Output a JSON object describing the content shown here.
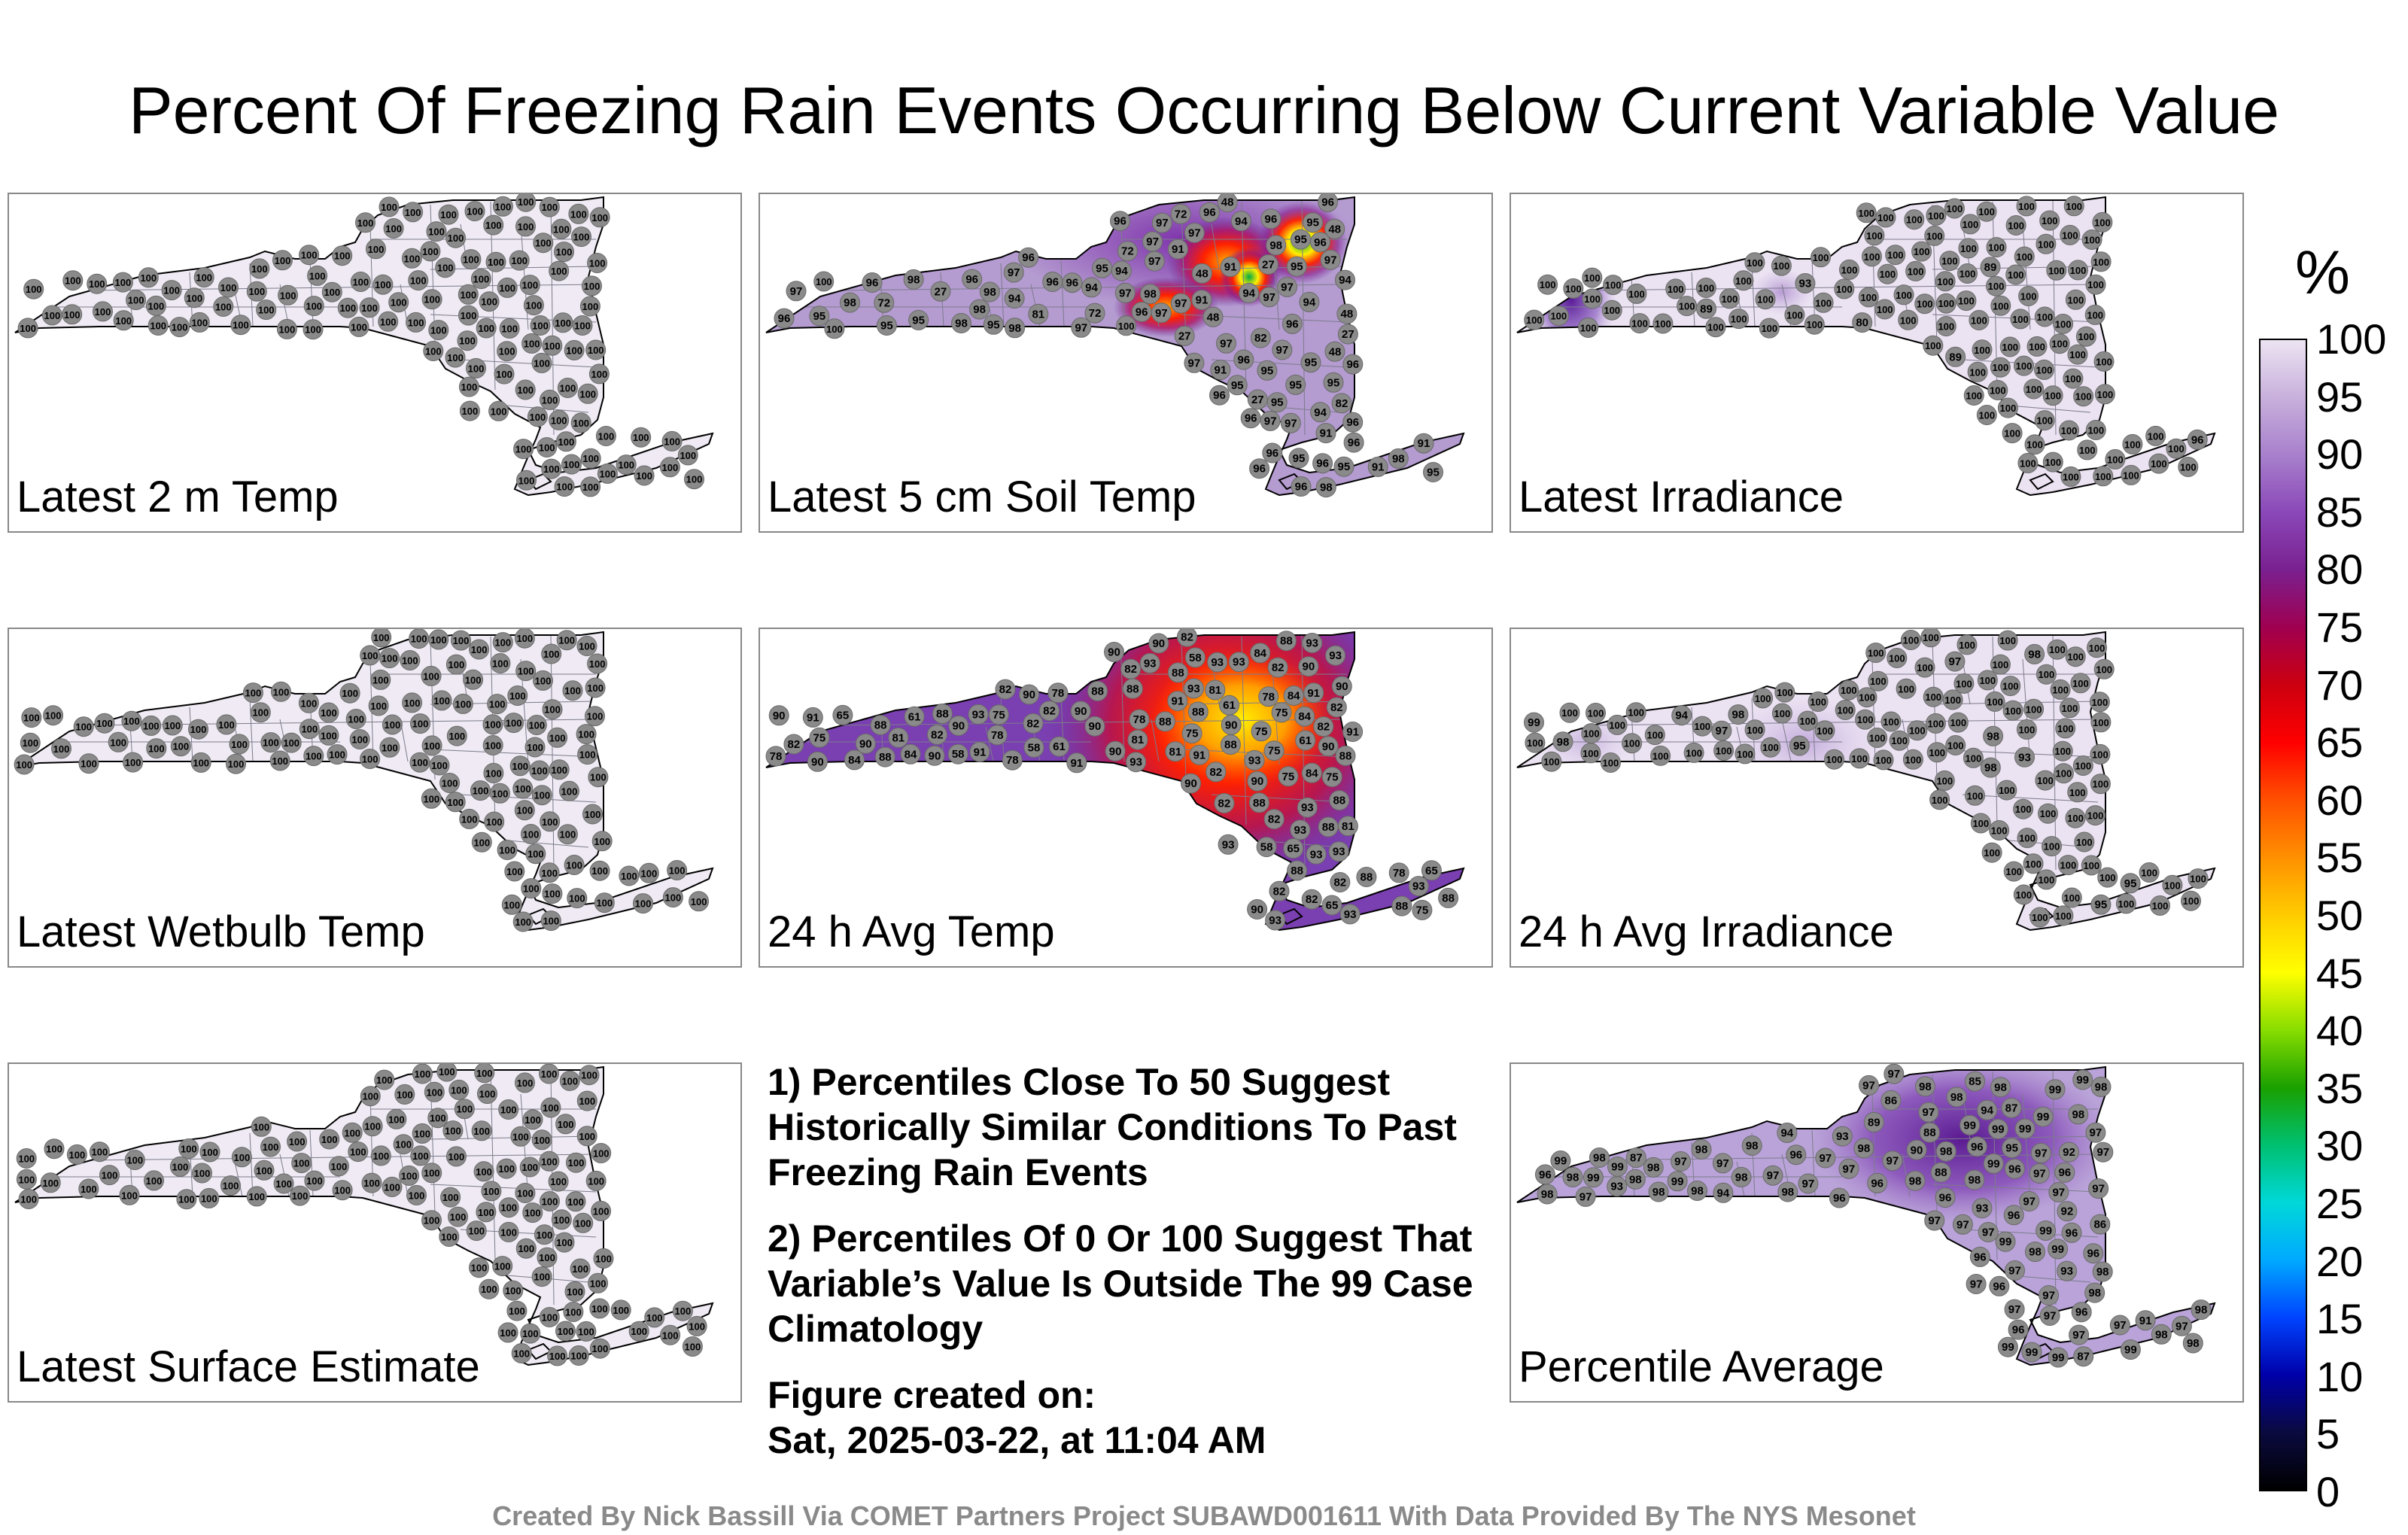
{
  "title": "Percent Of Freezing Rain Events Occurring Below Current Variable Value",
  "panels": [
    {
      "id": "p1",
      "label": "Latest 2 m Temp",
      "mode": "flat",
      "labels": [
        100,
        100,
        100,
        100,
        100,
        100,
        100,
        100,
        100,
        100,
        100,
        100,
        100,
        100,
        100,
        100,
        100,
        100,
        100,
        100,
        100,
        100,
        100,
        100,
        100,
        100,
        100,
        100,
        100,
        100,
        100,
        100,
        100,
        100,
        100,
        100,
        100,
        100,
        100,
        100,
        100,
        100,
        100,
        100,
        100,
        100,
        100,
        100,
        100,
        100,
        100,
        100,
        100,
        100,
        100,
        100,
        100,
        100,
        100,
        100,
        100,
        100,
        100,
        100,
        100,
        100,
        100,
        100,
        100,
        100,
        100,
        100,
        100,
        100,
        100,
        100,
        100,
        100,
        100,
        100,
        100,
        100,
        100,
        100,
        100,
        100,
        100,
        100,
        100,
        100,
        100,
        100,
        100,
        100,
        100,
        100,
        100,
        100,
        100,
        100,
        100,
        100,
        100,
        100,
        100,
        100,
        100,
        100,
        100,
        100,
        100,
        100,
        100,
        100,
        100,
        100,
        100,
        100,
        100,
        100,
        100,
        100,
        100,
        100,
        100,
        100
      ]
    },
    {
      "id": "p2",
      "label": "Latest 5 cm Soil Temp",
      "mode": "soil",
      "labels": [
        96,
        95,
        95,
        94,
        94,
        91,
        100,
        72,
        72,
        94,
        91,
        72,
        94,
        27,
        48,
        95,
        95,
        94,
        48,
        48,
        91,
        48,
        48,
        96,
        81,
        94,
        48,
        27,
        27,
        82,
        96,
        95,
        95,
        72,
        96,
        27,
        94,
        96,
        98,
        97,
        97,
        96,
        97,
        97,
        98,
        95,
        97,
        95,
        97,
        96,
        96,
        97,
        91,
        96,
        96,
        96,
        97,
        97,
        95,
        95,
        95,
        91,
        97,
        98,
        95,
        27,
        95,
        97,
        96,
        98,
        97,
        82,
        97,
        94,
        97,
        98,
        91,
        95,
        96,
        95,
        91,
        96,
        96,
        97,
        97,
        96,
        96,
        96,
        95,
        96,
        98,
        97,
        96,
        100,
        98,
        98,
        98,
        98,
        100,
        96,
        97,
        96,
        95,
        96
      ]
    },
    {
      "id": "p3",
      "label": "Latest Irradiance",
      "mode": "irr",
      "labels": [
        100,
        100,
        100,
        100,
        100,
        100,
        100,
        100,
        100,
        100,
        100,
        100,
        100,
        100,
        100,
        100,
        100,
        100,
        100,
        100,
        100,
        100,
        100,
        100,
        100,
        100,
        100,
        100,
        100,
        100,
        100,
        100,
        100,
        100,
        100,
        100,
        100,
        100,
        100,
        100,
        89,
        93,
        100,
        96,
        100,
        89,
        80,
        89,
        100,
        100,
        100,
        100,
        100,
        100,
        100,
        100,
        100,
        100,
        100,
        100,
        100,
        100,
        100,
        100,
        100,
        100,
        100,
        100,
        100,
        100,
        100,
        100,
        100,
        100,
        100,
        100,
        100,
        100,
        100,
        100,
        100,
        100,
        100,
        100,
        100,
        100,
        100,
        100,
        100,
        100,
        100,
        100,
        100,
        100,
        100,
        100,
        100,
        100,
        100,
        100,
        100,
        100,
        100,
        100,
        100,
        100,
        100,
        100,
        100,
        100,
        100,
        100,
        100,
        100,
        100,
        100,
        100,
        100,
        100,
        100,
        100,
        100,
        100
      ]
    },
    {
      "id": "p4",
      "label": "Latest Wetbulb Temp",
      "mode": "flat",
      "labels": [
        100,
        100,
        100,
        100,
        100,
        100,
        100,
        100,
        100,
        100,
        100,
        100,
        100,
        100,
        100,
        100,
        100,
        100,
        100,
        100,
        100,
        100,
        100,
        100,
        100,
        100,
        100,
        100,
        100,
        100,
        100,
        100,
        100,
        100,
        100,
        100,
        100,
        100,
        100,
        100,
        100,
        100,
        100,
        100,
        100,
        100,
        100,
        100,
        100,
        100,
        100,
        100,
        100,
        100,
        100,
        100,
        100,
        100,
        100,
        100,
        100,
        100,
        100,
        100,
        100,
        100,
        100,
        100,
        100,
        100,
        100,
        100,
        100,
        100,
        100,
        100,
        100,
        100,
        100,
        100,
        100,
        100,
        100,
        100,
        100,
        100,
        100,
        100,
        100,
        100,
        100,
        100,
        100,
        100,
        100,
        100,
        100,
        100,
        100,
        100,
        100,
        100,
        100,
        100,
        100,
        100,
        100,
        100,
        100,
        100,
        100,
        100,
        100,
        100,
        100,
        100,
        100,
        100,
        100,
        100,
        100,
        100,
        100
      ]
    },
    {
      "id": "p5",
      "label": "24 h Avg Temp",
      "mode": "avgtemp",
      "labels": [
        88,
        84,
        82,
        90,
        82,
        82,
        65,
        84,
        75,
        84,
        88,
        84,
        75,
        88,
        88,
        78,
        61,
        61,
        58,
        90,
        90,
        78,
        65,
        75,
        58,
        58,
        88,
        65,
        61,
        61,
        88,
        90,
        82,
        58,
        65,
        88,
        88,
        82,
        75,
        82,
        82,
        82,
        88,
        88,
        88,
        75,
        82,
        84,
        81,
        78,
        75,
        82,
        84,
        93,
        93,
        93,
        91,
        90,
        91,
        90,
        93,
        93,
        93,
        91,
        88,
        90,
        88,
        93,
        90,
        90,
        91,
        90,
        90,
        78,
        78,
        82,
        88,
        75,
        93,
        90,
        93,
        88,
        90,
        90,
        91,
        75,
        75,
        81,
        81,
        82,
        90,
        88,
        82,
        81,
        82,
        82,
        78,
        78,
        93,
        88,
        93,
        93,
        90,
        90,
        81,
        88,
        82,
        93,
        93,
        91,
        93,
        93,
        90,
        91,
        93
      ]
    },
    {
      "id": "p6",
      "label": "24 h Avg Irradiance",
      "mode": "avgirr",
      "labels": [
        100,
        100,
        100,
        100,
        100,
        100,
        100,
        100,
        100,
        93,
        100,
        100,
        100,
        100,
        100,
        100,
        100,
        100,
        95,
        100,
        100,
        100,
        100,
        100,
        100,
        100,
        100,
        100,
        100,
        100,
        100,
        100,
        100,
        100,
        99,
        100,
        100,
        100,
        100,
        97,
        100,
        100,
        100,
        100,
        100,
        100,
        100,
        95,
        100,
        100,
        100,
        100,
        100,
        98,
        98,
        98,
        100,
        100,
        97,
        100,
        95,
        100,
        94,
        100,
        98,
        100,
        98,
        100,
        100,
        100,
        100,
        100,
        100,
        100,
        100,
        100,
        100,
        100,
        100,
        100,
        100,
        100,
        100,
        100,
        100,
        100,
        100,
        100,
        100,
        100,
        100,
        100,
        100,
        100,
        100,
        100,
        100,
        100,
        100,
        100,
        100,
        100,
        100,
        100,
        100,
        100,
        100,
        100,
        100,
        100,
        100,
        100,
        100,
        100,
        100,
        100,
        100,
        100,
        100,
        100,
        100
      ]
    },
    {
      "id": "p7",
      "label": "Latest Surface Estimate",
      "mode": "flat",
      "labels": [
        100,
        100,
        100,
        100,
        100,
        100,
        100,
        100,
        100,
        100,
        100,
        100,
        100,
        100,
        100,
        100,
        100,
        100,
        100,
        100,
        100,
        100,
        100,
        100,
        100,
        100,
        100,
        100,
        100,
        100,
        100,
        100,
        100,
        100,
        100,
        100,
        100,
        100,
        100,
        100,
        100,
        100,
        100,
        100,
        100,
        100,
        100,
        100,
        100,
        100,
        100,
        100,
        100,
        100,
        100,
        100,
        100,
        100,
        100,
        100,
        100,
        100,
        100,
        100,
        100,
        100,
        100,
        100,
        100,
        100,
        100,
        100,
        100,
        100,
        100,
        100,
        100,
        100,
        100,
        100,
        100,
        100,
        100,
        100,
        100,
        100,
        100,
        100,
        100,
        100,
        100,
        100,
        100,
        100,
        100,
        100,
        100,
        100,
        100,
        100,
        100,
        100,
        100,
        100,
        100,
        100,
        100,
        100,
        100,
        100,
        100,
        100,
        100,
        100,
        100,
        100,
        100,
        100,
        100,
        100,
        100,
        100,
        100,
        100,
        100,
        100,
        100
      ]
    },
    {
      "id": "p8",
      "label": "Percentile Average",
      "mode": "pctavg",
      "labels": [
        97,
        98,
        97,
        97,
        97,
        97,
        94,
        91,
        93,
        93,
        92,
        90,
        97,
        96,
        88,
        87,
        93,
        89,
        88,
        93,
        96,
        86,
        87,
        92,
        85,
        97,
        94,
        96,
        86,
        98,
        98,
        98,
        97,
        98,
        98,
        97,
        97,
        96,
        98,
        98,
        97,
        96,
        97,
        96,
        98,
        97,
        98,
        97,
        99,
        96,
        95,
        97,
        87,
        97,
        97,
        96,
        96,
        97,
        98,
        96,
        98,
        96,
        98,
        97,
        98,
        97,
        98,
        99,
        98,
        96,
        99,
        99,
        98,
        98,
        96,
        97,
        98,
        96,
        97,
        96,
        97,
        99,
        98,
        98,
        94,
        97,
        97,
        98,
        98,
        97,
        98,
        99,
        99,
        97,
        98,
        99,
        99,
        99,
        99,
        99,
        99,
        99,
        99,
        97,
        98,
        97,
        99,
        99,
        99
      ]
    }
  ],
  "notes": [
    "1) Percentiles Close To 50 Suggest Historically Similar Conditions To Past Freezing Rain Events",
    "2) Percentiles Of 0 Or 100 Suggest That Variable’s Value Is Outside The 99 Case Climatology",
    "Figure created on:",
    "Sat, 2025-03-22, at 11:04 AM"
  ],
  "colorbar": {
    "unit": "%",
    "ticks": [
      "100",
      "95",
      "90",
      "85",
      "80",
      "75",
      "70",
      "65",
      "60",
      "55",
      "50",
      "45",
      "40",
      "35",
      "30",
      "25",
      "20",
      "15",
      "10",
      "5",
      "0"
    ],
    "stops": [
      "#000000",
      "#0a0a40",
      "#0000aa",
      "#0044ff",
      "#00aaff",
      "#00d8d8",
      "#00c070",
      "#1aa000",
      "#88dd00",
      "#ffff00",
      "#ffcc00",
      "#ff9000",
      "#ff5000",
      "#ff0000",
      "#cc0010",
      "#a00050",
      "#7a2090",
      "#8a48b8",
      "#a880cc",
      "#c8b0dc",
      "#ece4f2"
    ]
  },
  "footer": "Created By Nick Bassill Via COMET Partners Project SUBAWD001611 With Data Provided By The NYS Mesonet"
}
